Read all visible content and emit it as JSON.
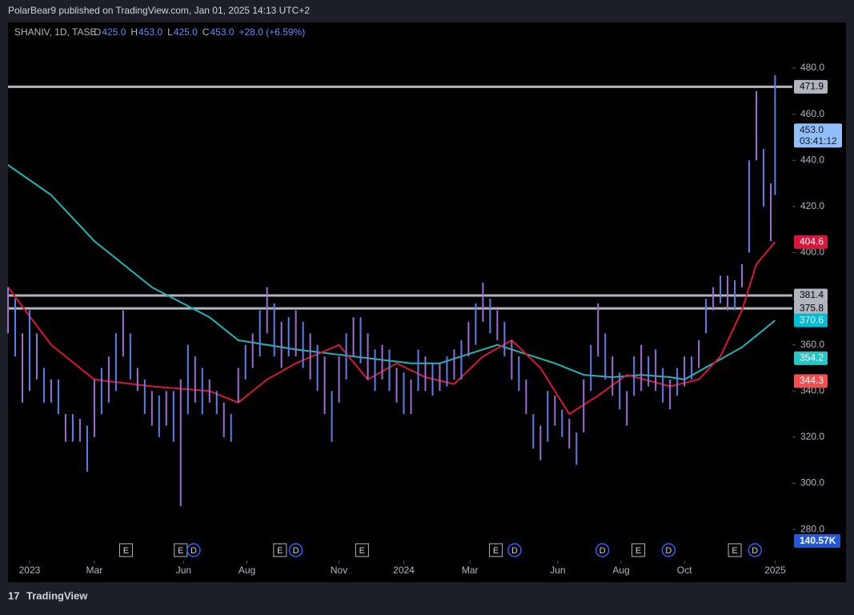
{
  "header": {
    "published": "PolarBear9 published on TradingView.com, Jan 01, 2025 14:13 UTC+2",
    "brand": "TradingView"
  },
  "chart_data": {
    "type": "range-bar",
    "symbol": "SHANIV, 1D, TASE",
    "legend": [
      {
        "key": "O",
        "text": "425.0"
      },
      {
        "key": "H",
        "text": "453.0"
      },
      {
        "key": "L",
        "text": "425.0"
      },
      {
        "key": "C",
        "text": "453.0"
      },
      {
        "key": "",
        "text": "+28.0 (+6.59%)"
      }
    ],
    "xlim": [
      0,
      545
    ],
    "ylim": [
      266.5,
      499.8
    ],
    "yticks": [
      {
        "value": 280,
        "label": "280.0"
      },
      {
        "value": 300,
        "label": "300.0"
      },
      {
        "value": 320,
        "label": "320.0"
      },
      {
        "value": 340,
        "label": "340.0"
      },
      {
        "value": 360,
        "label": "360.0"
      },
      {
        "value": 380,
        "label": "380.0"
      },
      {
        "value": 400,
        "label": "400.0"
      },
      {
        "value": 420,
        "label": "420.0"
      },
      {
        "value": 440,
        "label": "440.0"
      },
      {
        "value": 460,
        "label": "460.0"
      },
      {
        "value": 480,
        "label": "480.0"
      }
    ],
    "xticks": [
      {
        "value": 15,
        "label": "2023"
      },
      {
        "value": 60,
        "label": "Mar"
      },
      {
        "value": 122,
        "label": "Jun"
      },
      {
        "value": 166,
        "label": "Aug"
      },
      {
        "value": 230,
        "label": "Nov"
      },
      {
        "value": 275,
        "label": "2024"
      },
      {
        "value": 321,
        "label": "Mar"
      },
      {
        "value": 382,
        "label": "Jun"
      },
      {
        "value": 426,
        "label": "Aug"
      },
      {
        "value": 470,
        "label": "Oct"
      },
      {
        "value": 533,
        "label": "2025"
      }
    ],
    "colors": [
      "#9b6fd6",
      "#5b7ff0"
    ],
    "x": [
      0,
      5,
      10,
      15,
      20,
      25,
      30,
      35,
      40,
      45,
      50,
      55,
      60,
      65,
      70,
      75,
      80,
      85,
      90,
      95,
      100,
      105,
      110,
      115,
      120,
      125,
      130,
      135,
      140,
      145,
      150,
      155,
      160,
      165,
      170,
      175,
      180,
      185,
      190,
      195,
      200,
      205,
      210,
      215,
      220,
      225,
      230,
      235,
      240,
      245,
      250,
      255,
      260,
      265,
      270,
      275,
      280,
      285,
      290,
      295,
      300,
      305,
      310,
      315,
      320,
      325,
      330,
      335,
      340,
      345,
      350,
      355,
      360,
      365,
      370,
      375,
      380,
      385,
      390,
      395,
      400,
      405,
      410,
      415,
      420,
      425,
      430,
      435,
      440,
      445,
      450,
      455,
      460,
      465,
      470,
      475,
      480,
      485,
      490,
      495,
      500,
      505,
      510,
      515,
      520,
      525,
      530,
      533
    ],
    "low": [
      365,
      355,
      335,
      340,
      345,
      335,
      335,
      330,
      318,
      318,
      318,
      305,
      320,
      330,
      335,
      340,
      355,
      345,
      340,
      330,
      325,
      320,
      325,
      318,
      290,
      330,
      335,
      330,
      335,
      330,
      320,
      318,
      335,
      345,
      350,
      355,
      365,
      355,
      350,
      355,
      355,
      350,
      345,
      340,
      330,
      318,
      335,
      345,
      355,
      352,
      345,
      340,
      345,
      340,
      335,
      330,
      330,
      340,
      340,
      338,
      340,
      342,
      345,
      345,
      355,
      360,
      370,
      365,
      362,
      355,
      345,
      340,
      330,
      315,
      310,
      318,
      325,
      320,
      315,
      308,
      322,
      340,
      355,
      345,
      338,
      332,
      325,
      338,
      340,
      342,
      340,
      335,
      332,
      338,
      342,
      345,
      350,
      365,
      375,
      378,
      375,
      375,
      385,
      400,
      440,
      420,
      405,
      425
    ],
    "high": [
      385,
      380,
      365,
      375,
      365,
      350,
      345,
      345,
      330,
      330,
      328,
      325,
      345,
      350,
      355,
      365,
      375,
      365,
      350,
      345,
      340,
      338,
      340,
      340,
      345,
      360,
      355,
      350,
      345,
      340,
      335,
      330,
      350,
      360,
      365,
      375,
      385,
      378,
      370,
      372,
      375,
      370,
      365,
      360,
      355,
      340,
      355,
      365,
      372,
      372,
      365,
      358,
      360,
      358,
      350,
      348,
      345,
      358,
      355,
      352,
      352,
      355,
      358,
      362,
      370,
      378,
      387,
      380,
      375,
      370,
      362,
      355,
      345,
      330,
      325,
      340,
      338,
      332,
      328,
      322,
      345,
      360,
      378,
      365,
      355,
      348,
      340,
      355,
      360,
      355,
      358,
      350,
      345,
      350,
      355,
      355,
      362,
      380,
      385,
      390,
      390,
      388,
      395,
      440,
      470,
      445,
      430,
      477
    ],
    "lines": [
      {
        "color": "#1fb5b5",
        "x": [
          0,
          30,
          60,
          100,
          140,
          160,
          200,
          240,
          280,
          300,
          320,
          340,
          360,
          380,
          400,
          420,
          440,
          460,
          470,
          490,
          510,
          520,
          533
        ],
        "values": [
          438,
          425,
          405,
          385,
          372,
          362,
          358,
          355,
          352,
          352,
          356,
          360,
          356,
          352,
          347,
          346,
          347,
          346,
          345,
          352,
          359,
          364,
          370.6
        ]
      },
      {
        "color": "#d8163c",
        "x": [
          0,
          30,
          60,
          100,
          140,
          160,
          180,
          200,
          230,
          250,
          270,
          290,
          310,
          330,
          350,
          370,
          390,
          410,
          430,
          460,
          480,
          495,
          510,
          520,
          533
        ],
        "values": [
          385,
          360,
          345,
          342,
          340,
          335,
          345,
          352,
          360,
          345,
          352,
          346,
          343,
          355,
          362,
          350,
          330,
          338,
          347,
          342,
          345,
          355,
          375,
          395,
          404.6
        ]
      }
    ],
    "levels": [
      {
        "value": 471.9,
        "color": "#b2b5be"
      },
      {
        "value": 381.4,
        "color": "#b2b5be"
      },
      {
        "value": 375.8,
        "color": "#b2b5be"
      }
    ],
    "scale_labels": [
      {
        "value": 471.9,
        "color": "#b2b5be",
        "text_color": "#000000"
      },
      {
        "value": 453,
        "label": "453.0",
        "sub": "03:41:12",
        "color": "#90bff9",
        "text_color": "#131722"
      },
      {
        "value": 404.6,
        "color": "#d8163c",
        "text_color": "#ffffff"
      },
      {
        "value": 381.4,
        "color": "#b2b5be",
        "text_color": "#000000"
      },
      {
        "value": 375.8,
        "color": "#b2b5be",
        "text_color": "#000000"
      },
      {
        "value": 370.6,
        "color": "#00bcd4",
        "text_color": "#ffffff"
      },
      {
        "value": 354.2,
        "color": "#26c6c6",
        "text_color": "#ffffff"
      },
      {
        "value": 344.3,
        "color": "#f05050",
        "text_color": "#ffffff"
      }
    ],
    "volume_label": {
      "text": "140.57K",
      "color": "#2457d6"
    },
    "events": [
      {
        "x": 82,
        "label": "E"
      },
      {
        "x": 120,
        "label": "E"
      },
      {
        "x": 129,
        "label": "D"
      },
      {
        "x": 189,
        "label": "E"
      },
      {
        "x": 200,
        "label": "D"
      },
      {
        "x": 246,
        "label": "E"
      },
      {
        "x": 339,
        "label": "E"
      },
      {
        "x": 352,
        "label": "D"
      },
      {
        "x": 413,
        "label": "D"
      },
      {
        "x": 438,
        "label": "E"
      },
      {
        "x": 459,
        "label": "D"
      },
      {
        "x": 505,
        "label": "E"
      },
      {
        "x": 519,
        "label": "D"
      }
    ]
  }
}
